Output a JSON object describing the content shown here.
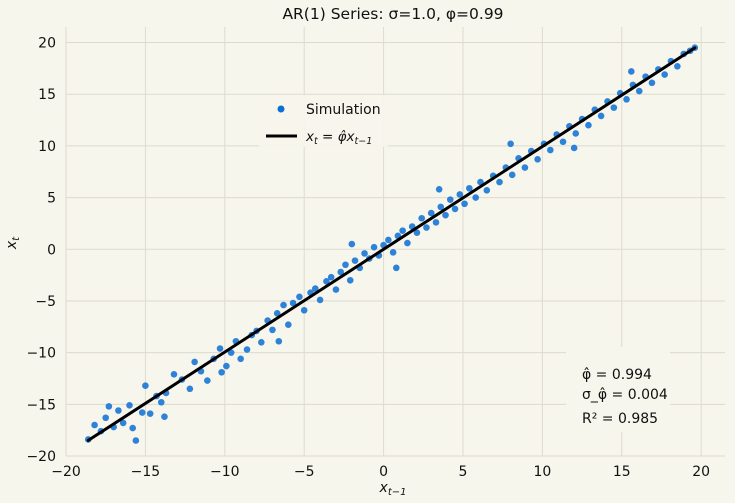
{
  "chart_data": {
    "type": "scatter",
    "title": "AR(1) Series: σ=1.0, φ=0.99",
    "xlabel": "x_{t-1}",
    "ylabel": "x_t",
    "xlim": [
      -20,
      21.5
    ],
    "ylim": [
      -20,
      21.5
    ],
    "xticks": [
      -20,
      -15,
      -10,
      -5,
      0,
      5,
      10,
      15,
      20
    ],
    "yticks": [
      -20,
      -15,
      -10,
      -5,
      0,
      5,
      10,
      15,
      20
    ],
    "xtick_labels": [
      "−20",
      "−15",
      "−10",
      "−5",
      "0",
      "5",
      "10",
      "15",
      "20"
    ],
    "ytick_labels": [
      "−20",
      "−15",
      "−10",
      "−5",
      "0",
      "5",
      "10",
      "15",
      "20"
    ],
    "grid": true,
    "legend_position": "upper-center",
    "series": [
      {
        "name": "Simulation",
        "type": "scatter",
        "color": "#0a6fd6",
        "points": [
          [
            -18.6,
            -18.4
          ],
          [
            -18.2,
            -17.0
          ],
          [
            -17.8,
            -17.6
          ],
          [
            -17.5,
            -16.3
          ],
          [
            -17.3,
            -15.2
          ],
          [
            -17.0,
            -17.2
          ],
          [
            -16.7,
            -15.6
          ],
          [
            -16.4,
            -16.8
          ],
          [
            -16.0,
            -15.1
          ],
          [
            -15.8,
            -17.3
          ],
          [
            -15.6,
            -18.5
          ],
          [
            -15.2,
            -15.8
          ],
          [
            -15.0,
            -13.2
          ],
          [
            -14.7,
            -15.9
          ],
          [
            -14.3,
            -14.2
          ],
          [
            -14.0,
            -14.8
          ],
          [
            -13.7,
            -13.9
          ],
          [
            -13.2,
            -12.1
          ],
          [
            -12.7,
            -12.6
          ],
          [
            -12.2,
            -13.5
          ],
          [
            -11.9,
            -10.9
          ],
          [
            -11.5,
            -11.8
          ],
          [
            -11.1,
            -12.7
          ],
          [
            -10.7,
            -10.6
          ],
          [
            -10.3,
            -9.6
          ],
          [
            -9.9,
            -11.3
          ],
          [
            -9.6,
            -10.0
          ],
          [
            -9.3,
            -8.9
          ],
          [
            -9.0,
            -10.6
          ],
          [
            -8.6,
            -9.7
          ],
          [
            -8.3,
            -8.3
          ],
          [
            -8.0,
            -7.9
          ],
          [
            -7.7,
            -9.0
          ],
          [
            -7.3,
            -6.9
          ],
          [
            -7.0,
            -7.8
          ],
          [
            -6.7,
            -6.2
          ],
          [
            -6.3,
            -5.4
          ],
          [
            -6.0,
            -7.3
          ],
          [
            -5.7,
            -5.2
          ],
          [
            -5.3,
            -4.6
          ],
          [
            -5.0,
            -5.9
          ],
          [
            -4.6,
            -4.2
          ],
          [
            -4.3,
            -3.8
          ],
          [
            -4.0,
            -4.9
          ],
          [
            -3.6,
            -3.1
          ],
          [
            -3.3,
            -2.7
          ],
          [
            -3.0,
            -3.9
          ],
          [
            -2.7,
            -2.2
          ],
          [
            -2.4,
            -1.5
          ],
          [
            -2.1,
            -3.0
          ],
          [
            -1.8,
            -1.1
          ],
          [
            -1.5,
            -1.8
          ],
          [
            -1.2,
            -0.4
          ],
          [
            -0.9,
            -0.9
          ],
          [
            -0.6,
            0.2
          ],
          [
            -0.3,
            -0.6
          ],
          [
            0.0,
            0.4
          ],
          [
            0.3,
            0.9
          ],
          [
            0.6,
            -0.3
          ],
          [
            0.9,
            1.3
          ],
          [
            1.2,
            1.8
          ],
          [
            1.5,
            0.6
          ],
          [
            1.8,
            2.2
          ],
          [
            2.1,
            1.6
          ],
          [
            2.4,
            3.0
          ],
          [
            2.7,
            2.1
          ],
          [
            3.0,
            3.5
          ],
          [
            3.3,
            2.6
          ],
          [
            3.6,
            4.1
          ],
          [
            3.9,
            3.3
          ],
          [
            4.2,
            4.8
          ],
          [
            4.5,
            3.9
          ],
          [
            4.8,
            5.3
          ],
          [
            5.1,
            4.4
          ],
          [
            5.4,
            5.9
          ],
          [
            5.8,
            5.0
          ],
          [
            6.1,
            6.5
          ],
          [
            6.5,
            5.7
          ],
          [
            6.9,
            7.1
          ],
          [
            7.3,
            6.5
          ],
          [
            7.7,
            7.9
          ],
          [
            8.1,
            7.2
          ],
          [
            8.5,
            8.8
          ],
          [
            8.9,
            7.9
          ],
          [
            9.3,
            9.5
          ],
          [
            9.7,
            8.7
          ],
          [
            10.1,
            10.2
          ],
          [
            10.5,
            9.6
          ],
          [
            10.9,
            11.1
          ],
          [
            11.3,
            10.4
          ],
          [
            11.7,
            11.9
          ],
          [
            12.1,
            11.2
          ],
          [
            12.5,
            12.6
          ],
          [
            12.9,
            12.0
          ],
          [
            13.3,
            13.5
          ],
          [
            13.7,
            12.9
          ],
          [
            14.1,
            14.3
          ],
          [
            14.5,
            13.7
          ],
          [
            14.9,
            15.1
          ],
          [
            15.3,
            14.5
          ],
          [
            15.7,
            15.9
          ],
          [
            16.1,
            15.3
          ],
          [
            16.5,
            16.7
          ],
          [
            16.9,
            16.1
          ],
          [
            17.3,
            17.4
          ],
          [
            17.7,
            16.9
          ],
          [
            18.1,
            18.2
          ],
          [
            18.5,
            17.7
          ],
          [
            18.9,
            18.9
          ],
          [
            19.3,
            19.2
          ],
          [
            19.6,
            19.5
          ],
          [
            15.6,
            17.2
          ],
          [
            12.0,
            9.8
          ],
          [
            8.0,
            10.2
          ],
          [
            3.5,
            5.8
          ],
          [
            -2.0,
            0.5
          ],
          [
            -10.2,
            -11.9
          ],
          [
            -13.8,
            -16.2
          ],
          [
            -6.6,
            -8.9
          ],
          [
            0.8,
            -1.8
          ]
        ]
      },
      {
        "name": "x_t = φ̂ x_{t-1}",
        "type": "line",
        "color": "#000000",
        "points": [
          [
            -18.6,
            -18.49
          ],
          [
            19.6,
            19.48
          ]
        ]
      }
    ],
    "annotation": {
      "phi_hat_label": "φ̂ = 0.994",
      "sigma_label": "σ_φ̂ = 0.004",
      "r2_label": "R² = 0.985"
    }
  }
}
